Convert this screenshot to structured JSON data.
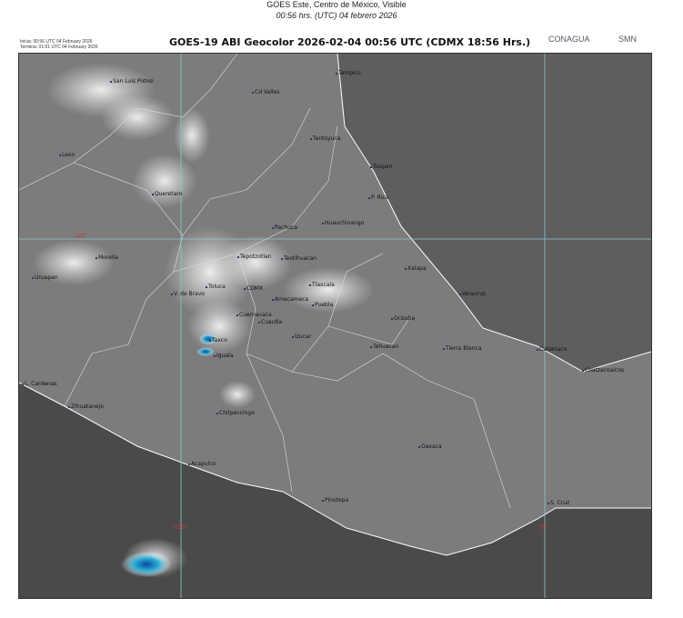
{
  "header": {
    "line1": "GOES Este, Centro de México, Visible",
    "line2": "00:56 hrs. (UTC) 04 febrero 2026"
  },
  "meta": {
    "start": "Inicia: 00:56 UTC 04 February 2026",
    "end": "Termina: 01:01 UTC 04 February 2026"
  },
  "title": "GOES-19 ABI Geocolor 2026-02-04 00:56 UTC (CDMX  18:56 Hrs.)",
  "logos": [
    "CONAGUA",
    "SMN"
  ],
  "gridlabels": [
    "+20°",
    "-100°",
    "-95°"
  ],
  "cities": [
    "San Luis Potosi",
    "Cd Valles",
    "Tampico",
    "Tantoyuca",
    "Tuxpan",
    "Leon",
    "Queretaro",
    "P. Rica",
    "Pachuca",
    "Huauchinango",
    "Morelia",
    "Uruapan",
    "Tepotzotlan",
    "Teotihuacan",
    "Toluca",
    "CDMX",
    "V. de Bravo",
    "Tlaxcala",
    "Amecameca",
    "Puebla",
    "Xalapa",
    "Veracruz",
    "Cuernavaca",
    "Cuautla",
    "Orizaba",
    "Izucar",
    "Taxco",
    "Iguala",
    "Tehuacan",
    "Tierra Blanca",
    "Catemaco",
    "Coatzacoalcos",
    "L. Cardenas",
    "Zihuatanejo",
    "Chilpancingo",
    "Oaxaca",
    "Acapulco",
    "Pinotepa",
    "S. Cruz"
  ]
}
